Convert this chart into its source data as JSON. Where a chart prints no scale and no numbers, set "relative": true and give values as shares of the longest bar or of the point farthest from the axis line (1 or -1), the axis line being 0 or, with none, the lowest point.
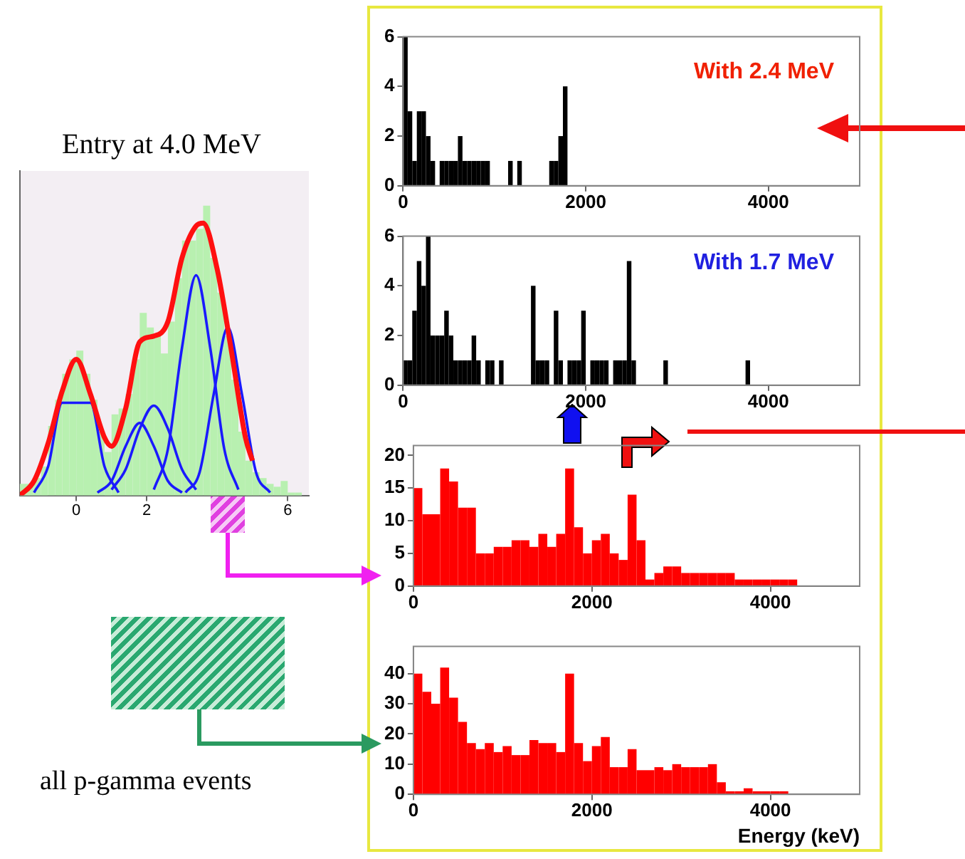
{
  "chart_data": [
    {
      "type": "histogram",
      "title": "Entry at 4.0 MeV",
      "relative": true,
      "color": "#b8f0b0",
      "tick_labels": "x",
      "xlim": [
        -1.6,
        6.6
      ],
      "xticks": [
        0,
        2,
        6
      ],
      "annotations": [
        "all p-gamma events"
      ],
      "bins": [
        -1.6,
        -1.4,
        -1.2,
        -1.0,
        -0.8,
        -0.6,
        -0.4,
        -0.2,
        0,
        0.2,
        0.4,
        0.6,
        0.8,
        1.0,
        1.2,
        1.4,
        1.6,
        1.8,
        2.0,
        2.2,
        2.4,
        2.6,
        2.8,
        3.0,
        3.2,
        3.4,
        3.6,
        3.8,
        4.0,
        4.2,
        4.4,
        4.6,
        4.8,
        5.0,
        5.2,
        5.4,
        5.6,
        5.8,
        6.0,
        6.2,
        6.4,
        6.6
      ],
      "values": [
        0.04,
        0.04,
        0.06,
        0.1,
        0.24,
        0.33,
        0.42,
        0.47,
        0.5,
        0.42,
        0.33,
        0.22,
        0.15,
        0.28,
        0.3,
        0.35,
        0.47,
        0.63,
        0.58,
        0.55,
        0.49,
        0.6,
        0.75,
        0.88,
        0.88,
        0.92,
        1.0,
        0.82,
        0.7,
        0.55,
        0.4,
        0.22,
        0.12,
        0.08,
        0.06,
        0.04,
        0.03,
        0.05,
        0.01,
        0.01,
        0
      ],
      "series": [
        {
          "type": "line",
          "color": "#ff1010",
          "x": [
            -1.6,
            -1.2,
            -0.8,
            -0.4,
            0,
            0.4,
            0.8,
            1.0,
            1.4,
            1.8,
            2.2,
            2.6,
            3.0,
            3.4,
            3.6,
            4.0,
            4.4,
            4.8,
            5.0
          ],
          "values": [
            0,
            0.05,
            0.18,
            0.36,
            0.47,
            0.35,
            0.2,
            0.17,
            0.3,
            0.53,
            0.55,
            0.6,
            0.82,
            0.93,
            0.94,
            0.78,
            0.5,
            0.2,
            0.12
          ]
        },
        {
          "type": "line",
          "color": "#1a1aff",
          "x": [
            -1.2,
            -0.8,
            -0.4,
            0,
            0.4,
            0.8,
            1.2
          ],
          "values": [
            0.01,
            0.1,
            0.32,
            null,
            0.32,
            0.1,
            0.01
          ]
        },
        {
          "type": "line",
          "color": "#1a1aff",
          "x": [
            0.6,
            1.0,
            1.4,
            1.8,
            2.2,
            2.6,
            3.0
          ],
          "values": [
            0.01,
            0.05,
            0.17,
            0.25,
            0.17,
            0.05,
            0.01
          ]
        },
        {
          "type": "line",
          "color": "#1a1aff",
          "x": [
            1.0,
            1.4,
            1.8,
            2.2,
            2.6,
            3.0,
            3.4
          ],
          "values": [
            0.02,
            0.09,
            0.23,
            0.31,
            0.23,
            0.09,
            0.02
          ]
        },
        {
          "type": "line",
          "color": "#1a1aff",
          "x": [
            2.2,
            2.6,
            3.0,
            3.4,
            3.8,
            4.2,
            4.6
          ],
          "values": [
            0.02,
            0.16,
            0.51,
            0.76,
            0.51,
            0.16,
            0.02
          ]
        },
        {
          "type": "line",
          "color": "#1a1aff",
          "x": [
            3.1,
            3.5,
            3.9,
            4.3,
            4.7,
            5.1,
            5.5
          ],
          "values": [
            0.01,
            0.08,
            0.35,
            0.58,
            0.35,
            0.08,
            0.01
          ]
        }
      ]
    },
    {
      "type": "histogram",
      "color": "#000000",
      "xlim": [
        0,
        5000
      ],
      "xticks": [
        0,
        2000,
        4000
      ],
      "ylim": [
        0,
        6
      ],
      "yticks": [
        0,
        2,
        4,
        6
      ],
      "annotations": [
        "With 2.4 MeV"
      ],
      "bins": [
        0,
        50,
        100,
        150,
        200,
        250,
        300,
        350,
        400,
        450,
        500,
        550,
        600,
        650,
        700,
        750,
        800,
        850,
        900,
        950,
        1000,
        1050,
        1100,
        1150,
        1200,
        1250,
        1300,
        1350,
        1400,
        1450,
        1500,
        1550,
        1600,
        1650,
        1700,
        1750,
        1800
      ],
      "values": [
        6,
        3,
        1,
        3,
        3,
        2,
        1,
        0,
        1,
        1,
        1,
        1,
        2,
        1,
        1,
        1,
        1,
        1,
        1,
        0,
        0,
        0,
        0,
        1,
        0,
        1,
        0,
        0,
        0,
        0,
        0,
        0,
        1,
        1,
        2,
        4
      ]
    },
    {
      "type": "histogram",
      "color": "#000000",
      "xlim": [
        0,
        5000
      ],
      "xticks": [
        0,
        2000,
        4000
      ],
      "ylim": [
        0,
        6
      ],
      "yticks": [
        0,
        2,
        4,
        6
      ],
      "annotations": [
        "With 1.7 MeV"
      ],
      "bins": [
        0,
        50,
        100,
        150,
        200,
        250,
        300,
        350,
        400,
        450,
        500,
        550,
        600,
        650,
        700,
        750,
        800,
        850,
        900,
        950,
        1000,
        1050,
        1100,
        1150,
        1200,
        1250,
        1300,
        1350,
        1400,
        1450,
        1500,
        1550,
        1600,
        1650,
        1700,
        1750,
        1800,
        1850,
        1900,
        1950,
        2000,
        2050,
        2100,
        2150,
        2200,
        2250,
        2300,
        2350,
        2400,
        2450,
        2500,
        2550,
        2600,
        2650,
        2700,
        2750,
        2800,
        2850,
        2900,
        2950,
        3000,
        3050,
        3100,
        3150,
        3200,
        3250,
        3300,
        3350,
        3400,
        3450,
        3500,
        3550,
        3600,
        3650,
        3700,
        3750,
        3800
      ],
      "values": [
        1,
        1,
        3,
        5,
        4,
        6,
        2,
        2,
        2,
        3,
        2,
        1,
        1,
        1,
        1,
        2,
        1,
        0,
        1,
        1,
        0,
        1,
        0,
        0,
        0,
        0,
        0,
        0,
        4,
        1,
        1,
        1,
        0,
        3,
        1,
        0,
        1,
        1,
        1,
        3,
        0,
        1,
        1,
        1,
        1,
        0,
        1,
        1,
        1,
        5,
        1,
        0,
        0,
        0,
        0,
        0,
        0,
        1,
        0,
        0,
        0,
        0,
        0,
        0,
        0,
        0,
        0,
        0,
        0,
        0,
        0,
        0,
        0,
        0,
        0,
        1
      ]
    },
    {
      "type": "histogram",
      "color": "#ff0000",
      "xlim": [
        0,
        5000
      ],
      "xticks": [
        0,
        2000,
        4000
      ],
      "ylim": [
        0,
        21.5
      ],
      "yticks": [
        0,
        5,
        10,
        15,
        20
      ],
      "bins": [
        0,
        100,
        200,
        300,
        400,
        500,
        600,
        700,
        800,
        900,
        1000,
        1100,
        1200,
        1300,
        1400,
        1500,
        1600,
        1700,
        1800,
        1900,
        2000,
        2100,
        2200,
        2300,
        2400,
        2500,
        2600,
        2700,
        2800,
        2900,
        3000,
        3100,
        3200,
        3300,
        3400,
        3500,
        3600,
        3700,
        3800,
        3900,
        4000,
        4100,
        4200,
        4300
      ],
      "values": [
        15,
        11,
        11,
        18,
        16,
        12,
        12,
        5,
        5,
        6,
        6,
        7,
        7,
        6,
        8,
        6,
        8,
        18,
        9,
        5,
        7,
        8,
        5,
        4,
        14,
        7,
        1,
        2,
        3,
        3,
        2,
        2,
        2,
        2,
        2,
        2,
        1,
        1,
        1,
        1,
        1,
        1,
        1
      ]
    },
    {
      "type": "histogram",
      "color": "#ff0000",
      "xlabel": "Energy (keV)",
      "xlim": [
        0,
        5000
      ],
      "xticks": [
        0,
        2000,
        4000
      ],
      "ylim": [
        0,
        49
      ],
      "yticks": [
        0,
        10,
        20,
        30,
        40
      ],
      "bins": [
        0,
        100,
        200,
        300,
        400,
        500,
        600,
        700,
        800,
        900,
        1000,
        1100,
        1200,
        1300,
        1400,
        1500,
        1600,
        1700,
        1800,
        1900,
        2000,
        2100,
        2200,
        2300,
        2400,
        2500,
        2600,
        2700,
        2800,
        2900,
        3000,
        3100,
        3200,
        3300,
        3400,
        3500,
        3600,
        3700,
        3800,
        3900,
        4000,
        4100,
        4200
      ],
      "values": [
        40,
        34,
        30,
        42,
        32,
        24,
        17,
        15,
        17,
        14,
        16,
        13,
        13,
        18,
        17,
        17,
        14,
        40,
        17,
        11,
        16,
        19,
        9,
        9,
        15,
        8,
        8,
        9,
        8,
        10,
        9,
        9,
        9,
        10,
        4,
        1,
        1,
        2,
        1,
        1,
        1,
        1
      ]
    }
  ]
}
